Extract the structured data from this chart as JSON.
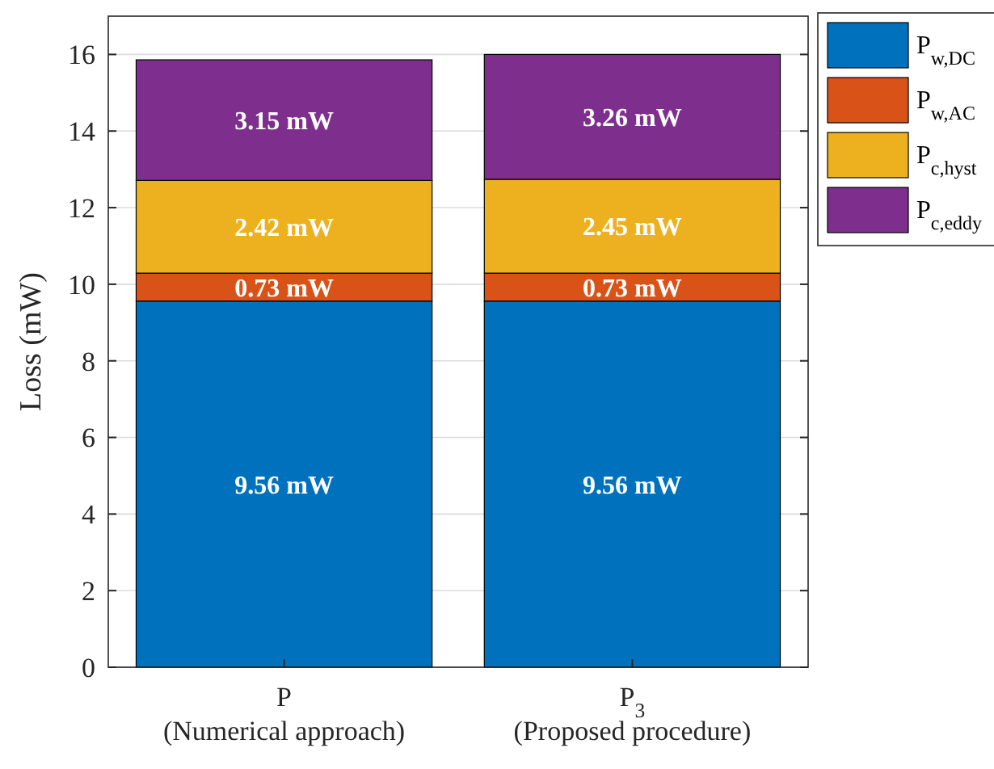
{
  "chart_data": {
    "type": "bar",
    "stacked": true,
    "ylabel": "Loss (mW)",
    "categories": [
      "P\n(Numerical approach)",
      "P$_{3}$\n(Proposed procedure)"
    ],
    "series": [
      {
        "name": "P$_{w,DC}$",
        "color": "#0072bd",
        "values": [
          9.56,
          9.56
        ],
        "value_labels": [
          "9.56 mW",
          "9.56 mW"
        ]
      },
      {
        "name": "P$_{w,AC}$",
        "color": "#d95319",
        "values": [
          0.73,
          0.73
        ],
        "value_labels": [
          "0.73 mW",
          "0.73 mW"
        ]
      },
      {
        "name": "P$_{c,hyst}$",
        "color": "#edb120",
        "values": [
          2.42,
          2.45
        ],
        "value_labels": [
          "2.42 mW",
          "2.45 mW"
        ]
      },
      {
        "name": "P$_{c,eddy}$",
        "color": "#7e2f8e",
        "values": [
          3.15,
          3.26
        ],
        "value_labels": [
          "3.15 mW",
          "3.26 mW"
        ]
      }
    ],
    "ylim": [
      0,
      17
    ],
    "yticks": [
      0,
      2,
      4,
      6,
      8,
      10,
      12,
      14,
      16
    ],
    "grid": true,
    "legend": "top right"
  }
}
